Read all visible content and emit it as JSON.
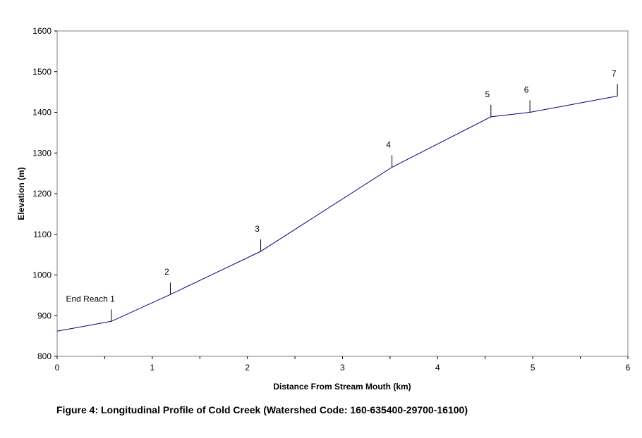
{
  "chart_data": {
    "type": "line",
    "title": "",
    "xlabel": "Distance From Stream Mouth (km)",
    "ylabel": "Elevation (m)",
    "xlim": [
      0,
      6
    ],
    "ylim": [
      800,
      1600
    ],
    "xticks": [
      0,
      1,
      2,
      3,
      4,
      5,
      6
    ],
    "yticks": [
      800,
      900,
      1000,
      1100,
      1200,
      1300,
      1400,
      1500,
      1600
    ],
    "grid": false,
    "legend": "none",
    "line_color": "#000080",
    "series": [
      {
        "x": [
          0,
          0.57,
          1.19,
          2.14,
          3.52,
          4.56,
          4.97,
          5.89
        ],
        "y": [
          862,
          886,
          952,
          1058,
          1265,
          1389,
          1400,
          1440
        ]
      }
    ],
    "reach_markers": [
      {
        "label": "End Reach 1",
        "x": 0.57,
        "y": 886
      },
      {
        "label": "2",
        "x": 1.19,
        "y": 952
      },
      {
        "label": "3",
        "x": 2.14,
        "y": 1058
      },
      {
        "label": "4",
        "x": 3.52,
        "y": 1265
      },
      {
        "label": "5",
        "x": 4.56,
        "y": 1389
      },
      {
        "label": "6",
        "x": 4.97,
        "y": 1400
      },
      {
        "label": "7",
        "x": 5.89,
        "y": 1440
      }
    ]
  },
  "caption": "Figure 4: Longitudinal Profile of Cold Creek (Watershed Code: 160-635400-29700-16100)"
}
